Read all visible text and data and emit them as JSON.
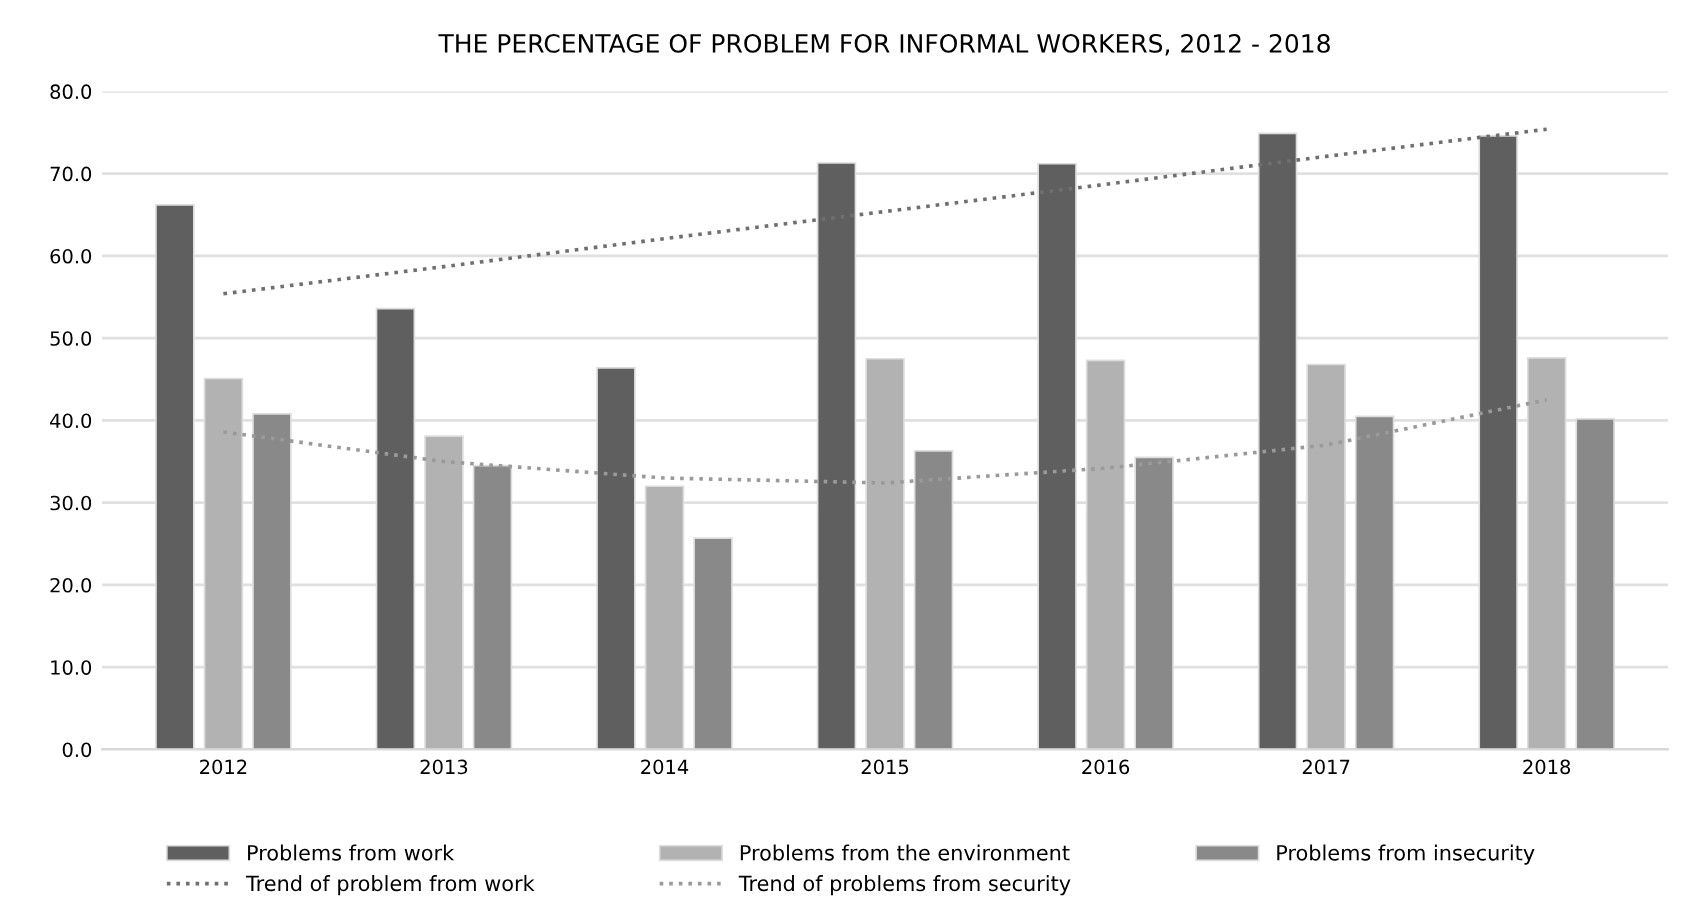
{
  "chart_data": {
    "type": "bar",
    "title": "THE PERCENTAGE OF PROBLEM FOR INFORMAL WORKERS, 2012 - 2018",
    "categories": [
      "2012",
      "2013",
      "2014",
      "2015",
      "2016",
      "2017",
      "2018"
    ],
    "series": [
      {
        "name": "Problems from work",
        "color": "#5f5f5f",
        "values": [
          66.2,
          53.6,
          46.4,
          71.3,
          71.2,
          74.9,
          74.6
        ]
      },
      {
        "name": "Problems from the environment",
        "color": "#b2b2b2",
        "values": [
          45.1,
          38.1,
          32.0,
          47.5,
          47.3,
          46.8,
          47.6
        ]
      },
      {
        "name": "Problems from insecurity",
        "color": "#898989",
        "values": [
          40.8,
          34.5,
          25.7,
          36.3,
          35.5,
          40.5,
          40.2
        ]
      },
      {
        "name": "Trend of problem from work",
        "type": "line",
        "line_style": "dotted",
        "color": "#6f6f6f",
        "values": [
          55.4,
          58.7,
          62.1,
          65.4,
          68.7,
          72.1,
          75.4
        ]
      },
      {
        "name": "Trend of problems from security",
        "type": "line",
        "line_style": "dotted",
        "color": "#9a9a9a",
        "values": [
          38.6,
          35.0,
          33.0,
          32.4,
          34.2,
          37.0,
          42.5
        ]
      }
    ],
    "ylim": [
      0,
      80
    ],
    "yticks": [
      {
        "value": 0,
        "label": "0.0"
      },
      {
        "value": 10,
        "label": "10.0"
      },
      {
        "value": 20,
        "label": "20.0"
      },
      {
        "value": 30,
        "label": "30.0"
      },
      {
        "value": 40,
        "label": "40.0"
      },
      {
        "value": 50,
        "label": "50.0"
      },
      {
        "value": 60,
        "label": "60.0"
      },
      {
        "value": 70,
        "label": "70.0"
      },
      {
        "value": 80,
        "label": "80.0"
      }
    ],
    "grid": "y",
    "legend": "bottom"
  }
}
